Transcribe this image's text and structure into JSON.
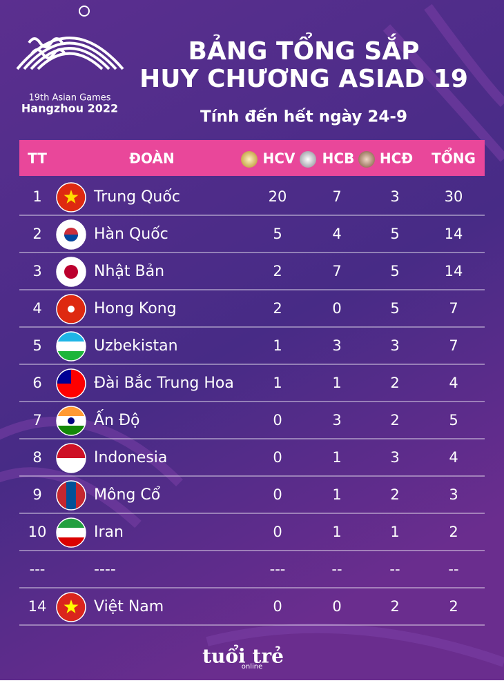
{
  "logo": {
    "line1": "19th Asian Games",
    "line2": "Hangzhou 2022"
  },
  "header": {
    "title_line1": "BẢNG TỔNG SẮP",
    "title_line2": "HUY CHƯƠNG ASIAD 19",
    "subtitle": "Tính đến hết ngày 24-9"
  },
  "table": {
    "columns": [
      "TT",
      "ĐOÀN",
      "HCV",
      "HCB",
      "HCĐ",
      "TỔNG"
    ],
    "rows": [
      [
        1,
        "Trung Quốc",
        20,
        7,
        3,
        30
      ],
      [
        2,
        "Hàn Quốc",
        5,
        4,
        5,
        14
      ],
      [
        3,
        "Nhật Bản",
        2,
        7,
        5,
        14
      ],
      [
        4,
        "Hong Kong",
        2,
        0,
        5,
        7
      ],
      [
        5,
        "Uzbekistan",
        1,
        3,
        3,
        7
      ],
      [
        6,
        "Đài Bắc Trung Hoa",
        1,
        1,
        2,
        4
      ],
      [
        7,
        "Ấn Độ",
        0,
        3,
        2,
        5
      ],
      [
        8,
        "Indonesia",
        0,
        1,
        3,
        4
      ],
      [
        9,
        "Mông Cổ",
        0,
        1,
        2,
        3
      ],
      [
        10,
        "Iran",
        0,
        1,
        1,
        2
      ],
      [
        "---",
        "----",
        "---",
        "--",
        "--",
        "--"
      ],
      [
        14,
        "Việt Nam",
        0,
        0,
        2,
        2
      ]
    ]
  },
  "footer": {
    "brand": "tuổi trẻ",
    "sub": "online"
  }
}
